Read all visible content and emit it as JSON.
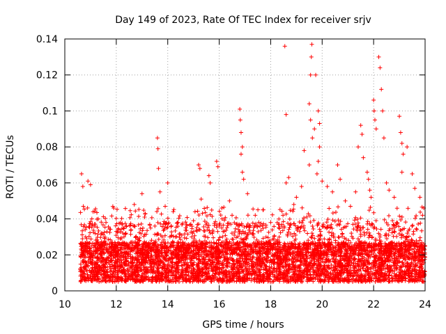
{
  "chart_data": {
    "type": "scatter",
    "title": "Day 149 of 2023, Rate Of TEC Index for receiver srjv",
    "xlabel": "GPS time / hours",
    "ylabel": "ROTI / TECUs",
    "xlim": [
      10,
      24
    ],
    "ylim": [
      0,
      0.14
    ],
    "x_ticks": [
      10,
      12,
      14,
      16,
      18,
      20,
      22,
      24
    ],
    "y_ticks": [
      0,
      0.02,
      0.04,
      0.06,
      0.08,
      0.1,
      0.12,
      0.14
    ],
    "grid": true,
    "marker": "+",
    "color": "#ff0000",
    "sampled_points": [
      [
        10.65,
        0.065
      ],
      [
        10.7,
        0.058
      ],
      [
        10.72,
        0.047
      ],
      [
        10.9,
        0.061
      ],
      [
        11.0,
        0.059
      ],
      [
        11.1,
        0.044
      ],
      [
        11.3,
        0.04
      ],
      [
        11.6,
        0.038
      ],
      [
        11.9,
        0.046
      ],
      [
        12.0,
        0.033
      ],
      [
        12.3,
        0.03
      ],
      [
        12.7,
        0.036
      ],
      [
        12.7,
        0.048
      ],
      [
        13.0,
        0.054
      ],
      [
        13.1,
        0.041
      ],
      [
        13.3,
        0.037
      ],
      [
        13.5,
        0.036
      ],
      [
        13.6,
        0.085
      ],
      [
        13.62,
        0.079
      ],
      [
        13.64,
        0.068
      ],
      [
        13.7,
        0.055
      ],
      [
        13.9,
        0.047
      ],
      [
        14.0,
        0.06
      ],
      [
        14.4,
        0.038
      ],
      [
        14.7,
        0.035
      ],
      [
        15.0,
        0.039
      ],
      [
        15.2,
        0.07
      ],
      [
        15.25,
        0.068
      ],
      [
        15.3,
        0.051
      ],
      [
        15.6,
        0.064
      ],
      [
        15.65,
        0.06
      ],
      [
        15.9,
        0.072
      ],
      [
        15.95,
        0.069
      ],
      [
        16.1,
        0.046
      ],
      [
        16.4,
        0.05
      ],
      [
        16.5,
        0.042
      ],
      [
        16.8,
        0.101
      ],
      [
        16.82,
        0.095
      ],
      [
        16.85,
        0.088
      ],
      [
        16.9,
        0.08
      ],
      [
        16.85,
        0.076
      ],
      [
        16.9,
        0.066
      ],
      [
        16.95,
        0.062
      ],
      [
        17.1,
        0.054
      ],
      [
        17.4,
        0.042
      ],
      [
        17.7,
        0.045
      ],
      [
        18.0,
        0.038
      ],
      [
        18.3,
        0.037
      ],
      [
        18.55,
        0.136
      ],
      [
        18.6,
        0.098
      ],
      [
        18.6,
        0.06
      ],
      [
        18.7,
        0.063
      ],
      [
        18.9,
        0.048
      ],
      [
        19.0,
        0.052
      ],
      [
        19.2,
        0.058
      ],
      [
        19.3,
        0.078
      ],
      [
        19.5,
        0.07
      ],
      [
        19.6,
        0.137
      ],
      [
        19.58,
        0.13
      ],
      [
        19.55,
        0.12
      ],
      [
        19.5,
        0.104
      ],
      [
        19.55,
        0.095
      ],
      [
        19.62,
        0.085
      ],
      [
        19.7,
        0.09
      ],
      [
        19.75,
        0.12
      ],
      [
        19.85,
        0.1
      ],
      [
        19.9,
        0.093
      ],
      [
        19.9,
        0.08
      ],
      [
        19.85,
        0.072
      ],
      [
        19.8,
        0.065
      ],
      [
        20.0,
        0.061
      ],
      [
        20.2,
        0.058
      ],
      [
        20.4,
        0.055
      ],
      [
        20.6,
        0.07
      ],
      [
        20.7,
        0.062
      ],
      [
        20.9,
        0.05
      ],
      [
        21.1,
        0.047
      ],
      [
        21.3,
        0.055
      ],
      [
        21.4,
        0.08
      ],
      [
        21.5,
        0.092
      ],
      [
        21.55,
        0.087
      ],
      [
        21.6,
        0.074
      ],
      [
        21.75,
        0.066
      ],
      [
        21.8,
        0.062
      ],
      [
        21.85,
        0.056
      ],
      [
        21.9,
        0.052
      ],
      [
        22.0,
        0.106
      ],
      [
        22.02,
        0.1
      ],
      [
        22.05,
        0.095
      ],
      [
        22.1,
        0.09
      ],
      [
        22.2,
        0.13
      ],
      [
        22.25,
        0.124
      ],
      [
        22.3,
        0.112
      ],
      [
        22.35,
        0.1
      ],
      [
        22.4,
        0.085
      ],
      [
        22.5,
        0.06
      ],
      [
        22.6,
        0.056
      ],
      [
        22.8,
        0.052
      ],
      [
        23.0,
        0.097
      ],
      [
        23.05,
        0.088
      ],
      [
        23.1,
        0.082
      ],
      [
        23.15,
        0.076
      ],
      [
        23.1,
        0.066
      ],
      [
        23.3,
        0.08
      ],
      [
        23.5,
        0.065
      ],
      [
        23.6,
        0.057
      ],
      [
        23.8,
        0.052
      ],
      [
        23.95,
        0.046
      ],
      [
        23.9,
        0.042
      ]
    ]
  }
}
